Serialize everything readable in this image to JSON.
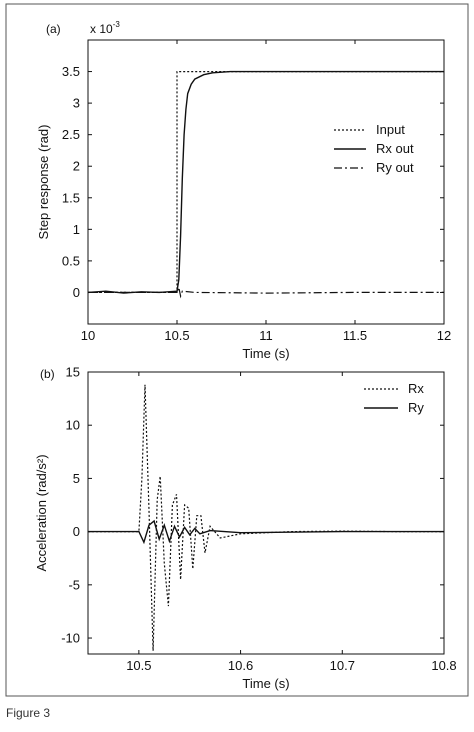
{
  "figure": {
    "caption_visible": "Figure 3"
  },
  "chart_data": [
    {
      "type": "line",
      "panel_label": "(a)",
      "title": "",
      "xlabel": "Time (s)",
      "ylabel": "Step response (rad)",
      "exponent_label": "x 10",
      "exponent_power": "-3",
      "xlim": [
        10,
        12
      ],
      "ylim": [
        -0.5,
        4
      ],
      "xticks": [
        10,
        10.5,
        11,
        11.5,
        12
      ],
      "xtick_labels": [
        "10",
        "10.5",
        "11",
        "11.5",
        "12"
      ],
      "yticks": [
        0,
        0.5,
        1,
        1.5,
        2,
        2.5,
        3,
        3.5
      ],
      "ytick_labels": [
        "0",
        "0.5",
        "1",
        "1.5",
        "2",
        "2.5",
        "3",
        "3.5"
      ],
      "grid": false,
      "legend_position": "right",
      "series": [
        {
          "name": "Input",
          "style": "dotted",
          "x": [
            10,
            10.5,
            10.5,
            12
          ],
          "y": [
            0,
            0,
            3.5,
            3.5
          ]
        },
        {
          "name": "Rx out",
          "style": "solid",
          "x": [
            10,
            10.1,
            10.2,
            10.3,
            10.4,
            10.5,
            10.51,
            10.52,
            10.53,
            10.54,
            10.55,
            10.56,
            10.58,
            10.6,
            10.65,
            10.7,
            10.8,
            11,
            11.5,
            12
          ],
          "y": [
            0,
            0.02,
            -0.01,
            0.01,
            0,
            0.02,
            0.2,
            0.9,
            1.8,
            2.5,
            2.9,
            3.15,
            3.3,
            3.38,
            3.45,
            3.48,
            3.5,
            3.5,
            3.5,
            3.5
          ]
        },
        {
          "name": "Ry out",
          "style": "dashdot",
          "x": [
            10,
            10.3,
            10.5,
            10.51,
            10.52,
            10.53,
            10.6,
            11,
            11.5,
            12
          ],
          "y": [
            0,
            0,
            0,
            0.08,
            -0.06,
            0.02,
            0,
            -0.01,
            0,
            0
          ]
        }
      ]
    },
    {
      "type": "line",
      "panel_label": "(b)",
      "title": "",
      "xlabel": "Time (s)",
      "ylabel": "Acceleration (rad/s²)",
      "xlim": [
        10.45,
        10.8
      ],
      "ylim": [
        -11.5,
        15
      ],
      "xticks": [
        10.5,
        10.6,
        10.7,
        10.8
      ],
      "xtick_labels": [
        "10.5",
        "10.6",
        "10.7",
        "10.8"
      ],
      "yticks": [
        -10,
        -5,
        0,
        5,
        10,
        15
      ],
      "ytick_labels": [
        "-10",
        "-5",
        "0",
        "5",
        "10",
        "15"
      ],
      "grid": false,
      "legend_position": "top-right",
      "series": [
        {
          "name": "Rx",
          "style": "dotted",
          "x": [
            10.45,
            10.5,
            10.503,
            10.506,
            10.51,
            10.514,
            10.518,
            10.521,
            10.525,
            10.529,
            10.533,
            10.537,
            10.541,
            10.545,
            10.549,
            10.553,
            10.557,
            10.561,
            10.565,
            10.57,
            10.58,
            10.6,
            10.65,
            10.7,
            10.75,
            10.8
          ],
          "y": [
            0,
            0,
            5,
            13.8,
            2,
            -11.2,
            3,
            5.2,
            -3,
            -7,
            2.5,
            3.5,
            -4.5,
            2.5,
            2.2,
            -3.5,
            1.5,
            1.5,
            -2,
            0.5,
            -0.6,
            -0.2,
            0,
            0.05,
            0,
            0
          ]
        },
        {
          "name": "Ry",
          "style": "solid",
          "x": [
            10.45,
            10.5,
            10.505,
            10.51,
            10.515,
            10.52,
            10.525,
            10.53,
            10.535,
            10.54,
            10.545,
            10.55,
            10.555,
            10.56,
            10.57,
            10.6,
            10.7,
            10.8
          ],
          "y": [
            0,
            0,
            -1,
            0.6,
            1,
            -0.7,
            0.6,
            -0.9,
            0.5,
            -0.5,
            0.4,
            -0.3,
            0.3,
            -0.2,
            0.1,
            -0.1,
            0,
            0
          ]
        }
      ]
    }
  ]
}
